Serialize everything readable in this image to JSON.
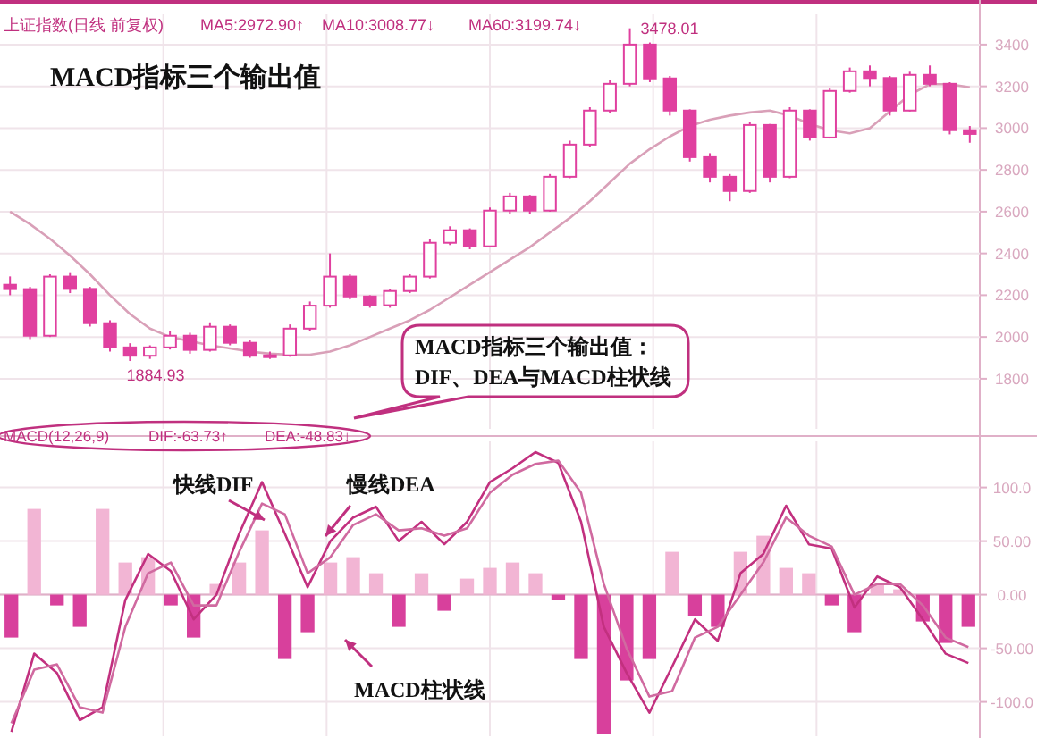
{
  "chart_data": [
    {
      "type": "candlestick",
      "title": "MACD指标三个输出值",
      "color": "#e0409f",
      "grid": true,
      "categories": [
        null,
        null,
        null,
        null,
        null,
        null,
        null,
        null,
        null,
        null,
        null,
        null,
        null,
        null,
        null,
        null,
        null,
        null,
        null,
        null,
        null,
        null,
        null,
        null,
        null,
        null,
        null,
        null,
        null,
        null,
        null,
        null,
        null,
        null,
        null,
        null,
        null,
        null,
        null,
        null,
        null,
        null,
        null,
        null,
        null,
        null,
        null,
        null,
        null
      ],
      "ohlc": [
        [
          2250,
          2290,
          2200,
          2229
        ],
        [
          2229,
          2240,
          1990,
          2006
        ],
        [
          2006,
          2300,
          2000,
          2289
        ],
        [
          2289,
          2310,
          2210,
          2230
        ],
        [
          2230,
          2240,
          2050,
          2066
        ],
        [
          2066,
          2080,
          1930,
          1950
        ],
        [
          1950,
          1970,
          1884.93,
          1910
        ],
        [
          1910,
          1960,
          1895,
          1950
        ],
        [
          1950,
          2030,
          1940,
          2006
        ],
        [
          2006,
          2020,
          1920,
          1938
        ],
        [
          1938,
          2070,
          1930,
          2049
        ],
        [
          2049,
          2060,
          1960,
          1972
        ],
        [
          1972,
          1985,
          1900,
          1910
        ],
        [
          1910,
          1930,
          1895,
          1912
        ],
        [
          1912,
          2060,
          1905,
          2040
        ],
        [
          2040,
          2170,
          2030,
          2150
        ],
        [
          2150,
          2400,
          2140,
          2289
        ],
        [
          2289,
          2300,
          2180,
          2194
        ],
        [
          2194,
          2200,
          2140,
          2152
        ],
        [
          2152,
          2230,
          2140,
          2220
        ],
        [
          2220,
          2300,
          2210,
          2289
        ],
        [
          2289,
          2470,
          2280,
          2451
        ],
        [
          2451,
          2530,
          2440,
          2511
        ],
        [
          2511,
          2520,
          2420,
          2434
        ],
        [
          2434,
          2620,
          2430,
          2605
        ],
        [
          2605,
          2690,
          2590,
          2673
        ],
        [
          2673,
          2680,
          2590,
          2605
        ],
        [
          2605,
          2780,
          2600,
          2767
        ],
        [
          2767,
          2940,
          2760,
          2921
        ],
        [
          2921,
          3100,
          2910,
          3084
        ],
        [
          3084,
          3230,
          3070,
          3212
        ],
        [
          3212,
          3478.01,
          3200,
          3400
        ],
        [
          3400,
          3410,
          3220,
          3238
        ],
        [
          3238,
          3250,
          3060,
          3084
        ],
        [
          3084,
          3090,
          2840,
          2861
        ],
        [
          2861,
          2880,
          2740,
          2767
        ],
        [
          2767,
          2780,
          2650,
          2699
        ],
        [
          2699,
          3030,
          2690,
          3015
        ],
        [
          3015,
          3020,
          2740,
          2767
        ],
        [
          2767,
          3100,
          2760,
          3084
        ],
        [
          3084,
          3090,
          2940,
          2955
        ],
        [
          2955,
          3190,
          2950,
          3178
        ],
        [
          3178,
          3290,
          3170,
          3272
        ],
        [
          3272,
          3300,
          3200,
          3240
        ],
        [
          3240,
          3250,
          3060,
          3084
        ],
        [
          3084,
          3270,
          3080,
          3255
        ],
        [
          3255,
          3300,
          3200,
          3212
        ],
        [
          3212,
          3220,
          2970,
          2990
        ],
        [
          2990,
          3010,
          2930,
          2972
        ]
      ],
      "series": [
        {
          "type": "line",
          "color": "#d9a0b8",
          "values": [
            2600,
            2540,
            2470,
            2390,
            2300,
            2200,
            2110,
            2040,
            2000,
            1980,
            1960,
            1945,
            1930,
            1920,
            1915,
            1915,
            1930,
            1960,
            2000,
            2040,
            2080,
            2130,
            2190,
            2250,
            2310,
            2370,
            2430,
            2500,
            2570,
            2650,
            2740,
            2830,
            2900,
            2960,
            3010,
            3040,
            3060,
            3075,
            3084,
            3060,
            3020,
            2990,
            2975,
            3000,
            3080,
            3160,
            3210,
            3210,
            3195
          ]
        }
      ],
      "ylim": [
        1560,
        3545
      ],
      "yticks": [
        1800,
        2000,
        2200,
        2400,
        2600,
        2800,
        3000,
        3200,
        3400
      ],
      "annotations": [
        "上证指数(日线 前复权)",
        "MA5:2972.90↑",
        "MA10:3008.77↓",
        "MA60:3199.74↓",
        "3478.01",
        "1884.93",
        "MACD指标三个输出值：",
        "DIF、DEA与MACD柱状线"
      ]
    },
    {
      "type": "bar",
      "grid": true,
      "categories": [
        null,
        null,
        null,
        null,
        null,
        null,
        null,
        null,
        null,
        null,
        null,
        null,
        null,
        null,
        null,
        null,
        null,
        null,
        null,
        null,
        null,
        null,
        null,
        null,
        null,
        null,
        null,
        null,
        null,
        null,
        null,
        null,
        null,
        null,
        null,
        null,
        null,
        null,
        null,
        null,
        null,
        null,
        null
      ],
      "series": [
        {
          "type": "bar",
          "colors": [
            "#d8409c",
            "#f2b5d4",
            "#d8409c",
            "#d8409c",
            "#f2b5d4",
            "#f2b5d4",
            "#f2b5d4",
            "#d8409c",
            "#d8409c",
            "#f2b5d4",
            "#f2b5d4",
            "#f2b5d4",
            "#d8409c",
            "#d8409c",
            "#f2b5d4",
            "#f2b5d4",
            "#f2b5d4",
            "#d8409c",
            "#f2b5d4",
            "#d8409c",
            "#f2b5d4",
            "#f2b5d4",
            "#f2b5d4",
            "#f2b5d4",
            "#d8409c",
            "#d8409c",
            "#d8409c",
            "#d8409c",
            "#d8409c",
            "#f2b5d4",
            "#d8409c",
            "#d8409c",
            "#f2b5d4",
            "#f2b5d4",
            "#f2b5d4",
            "#f2b5d4",
            "#d8409c",
            "#d8409c",
            "#f2b5d4",
            "#f2b5d4",
            "#d8409c",
            "#d8409c",
            "#d8409c"
          ],
          "values": [
            -40,
            80,
            -10,
            -30,
            80,
            30,
            35,
            -10,
            -40,
            10,
            30,
            60,
            -60,
            -35,
            30,
            35,
            20,
            -30,
            20,
            -15,
            15,
            25,
            30,
            20,
            -5,
            -60,
            -130,
            -80,
            -60,
            40,
            -20,
            -30,
            40,
            55,
            25,
            20,
            -10,
            -35,
            10,
            5,
            -25,
            -45,
            -30
          ]
        },
        {
          "type": "line",
          "color": "#c2307f",
          "values": [
            -128,
            -55,
            -73,
            -117,
            -105,
            -5,
            38,
            22,
            -23,
            0,
            57,
            105,
            57,
            7,
            50,
            72,
            82,
            50,
            68,
            47,
            68,
            105,
            118,
            133,
            123,
            68,
            -30,
            -73,
            -110,
            -67,
            -23,
            -43,
            20,
            38,
            83,
            47,
            43,
            -12,
            17,
            7,
            -23,
            -55,
            -63.73
          ]
        },
        {
          "type": "line",
          "color": "#d06aa0",
          "values": [
            -120,
            -70,
            -65,
            -105,
            -110,
            -30,
            20,
            30,
            -10,
            -10,
            40,
            85,
            75,
            20,
            35,
            65,
            75,
            60,
            62,
            55,
            62,
            95,
            112,
            122,
            125,
            95,
            10,
            -50,
            -95,
            -90,
            -40,
            -30,
            0,
            30,
            72,
            55,
            45,
            0,
            10,
            10,
            -10,
            -40,
            -48.83
          ]
        }
      ],
      "ylim": [
        -132,
        143
      ],
      "ref_lines": [
        {
          "axis": "y",
          "value": 0,
          "color": "#e0b0c8"
        }
      ],
      "yticks": [
        {
          "value": 100,
          "label": "100.0"
        },
        {
          "value": 50,
          "label": "50.00"
        },
        {
          "value": 0,
          "label": "0.00"
        },
        {
          "value": -50,
          "label": "-50.00"
        },
        {
          "value": -100,
          "label": "-100.0"
        }
      ],
      "annotations": [
        "MACD(12,26,9)",
        "DIF:-63.73↑",
        "DEA:-48.83↓",
        "快线DIF",
        "慢线DEA",
        "MACD柱状线"
      ]
    }
  ]
}
